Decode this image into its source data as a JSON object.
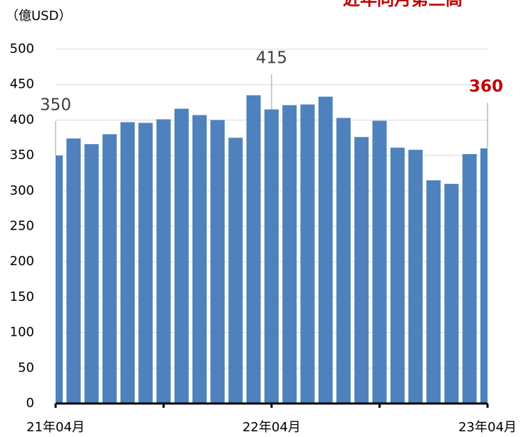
{
  "chart_data": {
    "type": "bar",
    "title": "近年同月第三高",
    "unit_label": "（億USD）",
    "categories": [
      "21年04月",
      null,
      null,
      null,
      null,
      null,
      null,
      null,
      null,
      null,
      null,
      null,
      "22年04月",
      null,
      null,
      null,
      null,
      null,
      null,
      null,
      null,
      null,
      null,
      null,
      "23年04月"
    ],
    "values": [
      350,
      374,
      366,
      380,
      397,
      396,
      401,
      416,
      407,
      400,
      375,
      435,
      415,
      421,
      422,
      433,
      403,
      376,
      399,
      361,
      358,
      315,
      310,
      352,
      360
    ],
    "color": "#4f81bd",
    "highlight_color": "#c00000",
    "ylim": [
      0,
      500
    ],
    "yticks": [
      0,
      50,
      100,
      150,
      200,
      250,
      300,
      350,
      400,
      450,
      500
    ],
    "grid": true
  }
}
